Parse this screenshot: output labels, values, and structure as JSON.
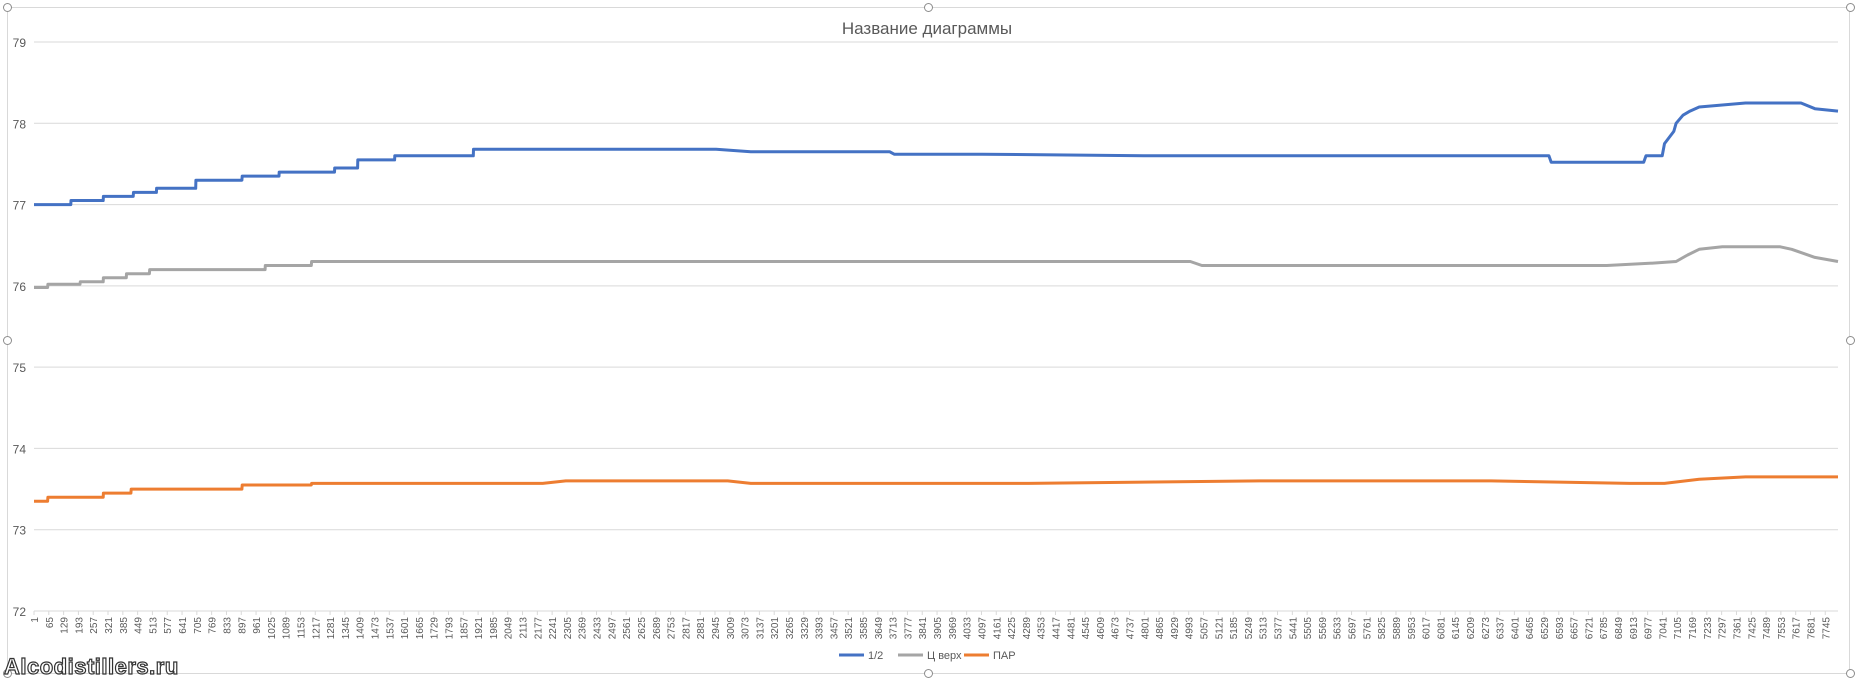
{
  "watermark": "Alcodistillers.ru",
  "chart_data": {
    "type": "line",
    "title": "Название диаграммы",
    "xlabel": "",
    "ylabel": "",
    "ylim": [
      72,
      79
    ],
    "yticks": [
      72,
      73,
      74,
      75,
      76,
      77,
      78,
      79
    ],
    "xlim": [
      1,
      7800
    ],
    "xtick_start": 1,
    "xtick_step": 64,
    "xtick_end": 7745,
    "grid": true,
    "legend_position": "bottom",
    "series": [
      {
        "name": "1/2",
        "color": "#4472c4",
        "x": [
          1,
          160,
          161,
          300,
          301,
          430,
          431,
          530,
          531,
          700,
          701,
          900,
          901,
          1060,
          1061,
          1300,
          1301,
          1400,
          1401,
          1560,
          1561,
          1900,
          1901,
          2950,
          3100,
          3700,
          3720,
          4100,
          4800,
          6550,
          6560,
          6960,
          6970,
          7040,
          7050,
          7090,
          7100,
          7130,
          7160,
          7200,
          7400,
          7640,
          7700,
          7800
        ],
        "y": [
          77.0,
          77.0,
          77.05,
          77.05,
          77.1,
          77.1,
          77.15,
          77.15,
          77.2,
          77.2,
          77.3,
          77.3,
          77.35,
          77.35,
          77.4,
          77.4,
          77.45,
          77.45,
          77.55,
          77.55,
          77.6,
          77.6,
          77.68,
          77.68,
          77.65,
          77.65,
          77.62,
          77.62,
          77.6,
          77.6,
          77.52,
          77.52,
          77.6,
          77.6,
          77.75,
          77.9,
          78.0,
          78.1,
          78.15,
          78.2,
          78.25,
          78.25,
          78.18,
          78.15
        ]
      },
      {
        "name": "Ц верх",
        "color": "#a5a5a5",
        "x": [
          1,
          60,
          61,
          200,
          201,
          300,
          301,
          400,
          401,
          500,
          501,
          1000,
          1001,
          1200,
          1201,
          1500,
          5000,
          5050,
          5100,
          6800,
          7000,
          7100,
          7150,
          7200,
          7300,
          7550,
          7600,
          7700,
          7800
        ],
        "y": [
          75.98,
          75.98,
          76.02,
          76.02,
          76.05,
          76.05,
          76.1,
          76.1,
          76.15,
          76.15,
          76.2,
          76.2,
          76.25,
          76.25,
          76.3,
          76.3,
          76.3,
          76.25,
          76.25,
          76.25,
          76.28,
          76.3,
          76.38,
          76.45,
          76.48,
          76.48,
          76.45,
          76.35,
          76.3
        ]
      },
      {
        "name": "ПАР",
        "color": "#ed7d31",
        "x": [
          1,
          60,
          61,
          300,
          301,
          420,
          421,
          900,
          901,
          1200,
          1201,
          2200,
          2300,
          3000,
          3100,
          4300,
          5300,
          6300,
          6900,
          7050,
          7200,
          7400,
          7700,
          7800
        ],
        "y": [
          73.35,
          73.35,
          73.4,
          73.4,
          73.45,
          73.45,
          73.5,
          73.5,
          73.55,
          73.55,
          73.57,
          73.57,
          73.6,
          73.6,
          73.57,
          73.57,
          73.6,
          73.6,
          73.57,
          73.57,
          73.62,
          73.65,
          73.65,
          73.65
        ]
      }
    ]
  }
}
